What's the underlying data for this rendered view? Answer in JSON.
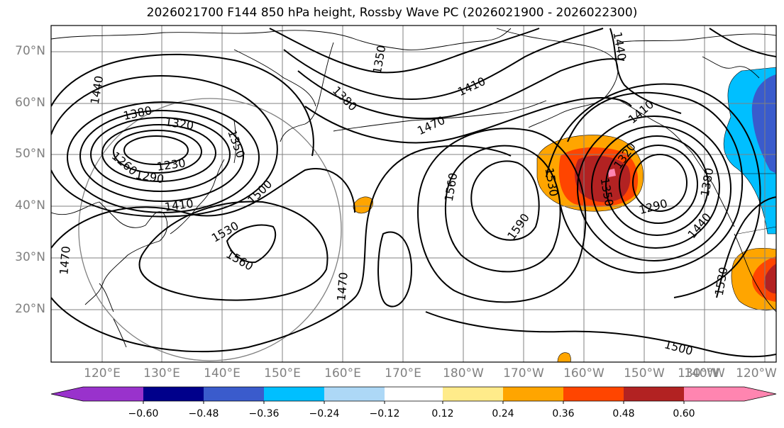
{
  "title": "2026021700 F144 850 hPa height, Rossby Wave PC (2026021900 - 2026022300)",
  "map": {
    "lat_labels": [
      "70°N",
      "60°N",
      "50°N",
      "40°N",
      "30°N",
      "20°N"
    ],
    "lon_labels": [
      "120°E",
      "130°E",
      "140°E",
      "150°E",
      "160°E",
      "170°E",
      "180°W",
      "170°W",
      "160°W",
      "150°W",
      "140°W",
      "130°W",
      "120°W"
    ],
    "contour_labels": [
      "1440",
      "1380",
      "1320",
      "1350",
      "1260",
      "1230",
      "1290",
      "1410",
      "1500",
      "1470",
      "1530",
      "1560",
      "1350",
      "1380",
      "1410",
      "1470",
      "1440",
      "1560",
      "1590",
      "1530",
      "1320",
      "1350",
      "1290",
      "1380",
      "1440",
      "1410",
      "1530",
      "1470",
      "1500"
    ],
    "colors": {
      "contour": "#000000",
      "coastline": "#000000",
      "grid": "#808080",
      "circle": "#808080"
    }
  },
  "colorbar": {
    "tick_labels": [
      "−0.60",
      "−0.48",
      "−0.36",
      "−0.24",
      "−0.12",
      "0.12",
      "0.24",
      "0.36",
      "0.48",
      "0.60"
    ],
    "colors": [
      "#9932CC",
      "#00008B",
      "#3A5BCC",
      "#00BFFF",
      "#ADD8F6",
      "#FFFFFF",
      "#FFEB8A",
      "#FFA500",
      "#FF4500",
      "#B22222",
      "#FF85B0"
    ]
  }
}
